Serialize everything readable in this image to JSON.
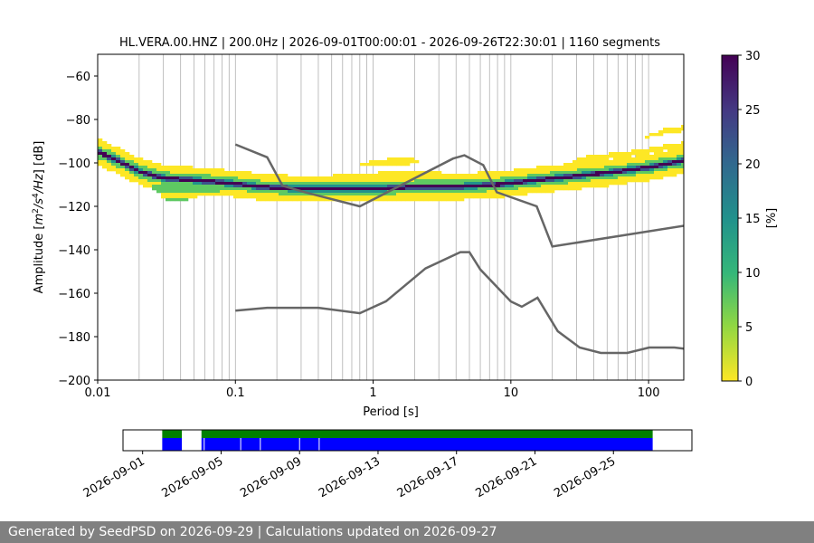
{
  "chart_data": [
    {
      "type": "heatmap",
      "title": "HL.VERA.00.HNZ | 200.0Hz | 2026-09-01T00:00:01 - 2026-09-26T22:30:01 | 1160 segments",
      "xlabel": "Period [s]",
      "ylabel_parts": [
        "Amplitude [",
        "m",
        "2",
        "/",
        "s",
        "4",
        "/",
        "Hz",
        "] [dB]"
      ],
      "x_scale": "log",
      "xlim": [
        0.01,
        180
      ],
      "ylim": [
        -200,
        -50
      ],
      "x_ticks": [
        {
          "value": 0.01,
          "label": "0.01"
        },
        {
          "value": 0.1,
          "label": "0.1"
        },
        {
          "value": 1,
          "label": "1"
        },
        {
          "value": 10,
          "label": "10"
        },
        {
          "value": 100,
          "label": "100"
        }
      ],
      "y_ticks": [
        {
          "value": -60,
          "label": "−60"
        },
        {
          "value": -80,
          "label": "−80"
        },
        {
          "value": -100,
          "label": "−100"
        },
        {
          "value": -120,
          "label": "−120"
        },
        {
          "value": -140,
          "label": "−140"
        },
        {
          "value": -160,
          "label": "−160"
        },
        {
          "value": -180,
          "label": "−180"
        },
        {
          "value": -200,
          "label": "−200"
        }
      ],
      "grid": "vertical at log minor ticks",
      "colormap": "viridis_r",
      "colors": {
        "high": "#440154",
        "mid_high": "#3b528b",
        "mid": "#21918c",
        "mid_low": "#5ec962",
        "low": "#fde725",
        "reference_lines": "#666666"
      },
      "colorbar": {
        "label": "[%]",
        "range": [
          0,
          30
        ],
        "ticks": [
          {
            "value": 0,
            "label": "0"
          },
          {
            "value": 5,
            "label": "5"
          },
          {
            "value": 10,
            "label": "10"
          },
          {
            "value": 15,
            "label": "15"
          },
          {
            "value": 20,
            "label": "20"
          },
          {
            "value": 25,
            "label": "25"
          },
          {
            "value": 30,
            "label": "30"
          }
        ]
      },
      "mode_curve": {
        "x": [
          0.01,
          0.012,
          0.015,
          0.02,
          0.03,
          0.05,
          0.08,
          0.15,
          0.3,
          0.6,
          1,
          2,
          4,
          8,
          15,
          30,
          60,
          100,
          180
        ],
        "y": [
          -95,
          -97,
          -100,
          -104,
          -107,
          -108,
          -109,
          -111,
          -112,
          -112,
          -112,
          -111,
          -111,
          -110,
          -108,
          -106,
          -104,
          -102,
          -99
        ]
      },
      "low_mode": {
        "x": [
          0.025,
          0.03,
          0.035,
          0.04,
          0.05,
          0.06,
          0.08,
          0.1,
          0.15
        ],
        "y": [
          -112,
          -116,
          -118,
          -118,
          -116,
          -114,
          -113,
          -112,
          -111
        ]
      },
      "microseism": {
        "x": [
          0.3,
          0.5,
          0.8,
          1,
          1.3,
          1.8,
          2.5,
          3.5
        ],
        "y": [
          -108,
          -106,
          -101,
          -98,
          -96,
          -97,
          -101,
          -106
        ]
      },
      "high_tail": {
        "x": [
          5,
          10,
          20,
          40,
          80,
          180
        ],
        "y": [
          -108,
          -106,
          -102,
          -96,
          -90,
          -80
        ]
      },
      "reference_curves": [
        {
          "x": [
            0.1,
            0.17,
            0.22,
            0.32,
            0.8,
            3.8,
            4.6,
            6.3,
            7.9,
            15.4,
            20,
            354.8
          ],
          "y": [
            -91.5,
            -97.4,
            -110.5,
            -113.5,
            -120,
            -98,
            -96.5,
            -101,
            -113.5,
            -120,
            -138.5,
            -126
          ]
        },
        {
          "x": [
            0.1,
            0.17,
            0.4,
            0.8,
            1.24,
            2.4,
            4.3,
            5,
            6,
            10,
            12,
            15.6,
            21.9,
            31.6,
            45,
            70,
            101,
            154,
            328
          ],
          "y": [
            -168,
            -166.7,
            -166.7,
            -169.2,
            -163.7,
            -148.6,
            -141.1,
            -141.1,
            -149.1,
            -163.8,
            -166.2,
            -162.1,
            -177.5,
            -185,
            -187.5,
            -187.5,
            -185,
            -185,
            -187.5
          ]
        }
      ]
    },
    {
      "type": "timeline",
      "x_ticks": [
        "2026-09-01",
        "2026-09-05",
        "2026-09-09",
        "2026-09-13",
        "2026-09-17",
        "2026-09-21",
        "2026-09-25"
      ],
      "range": [
        "2026-08-31",
        "2026-09-29"
      ],
      "green_segments": [
        [
          "2026-09-02",
          "2026-09-03"
        ],
        [
          "2026-09-04",
          "2026-09-27"
        ]
      ],
      "blue_segments": [
        [
          "2026-09-02",
          "2026-09-03"
        ],
        [
          "2026-09-04",
          "2026-09-27"
        ]
      ],
      "gaps": [
        "2026-09-04",
        "2026-09-06",
        "2026-09-07",
        "2026-09-09",
        "2026-09-10"
      ],
      "colors": {
        "coverage": "#008000",
        "data": "#0000ff"
      }
    }
  ],
  "footer": {
    "text": "Generated by SeedPSD on 2026-09-29 | Calculations updated on 2026-09-27"
  }
}
